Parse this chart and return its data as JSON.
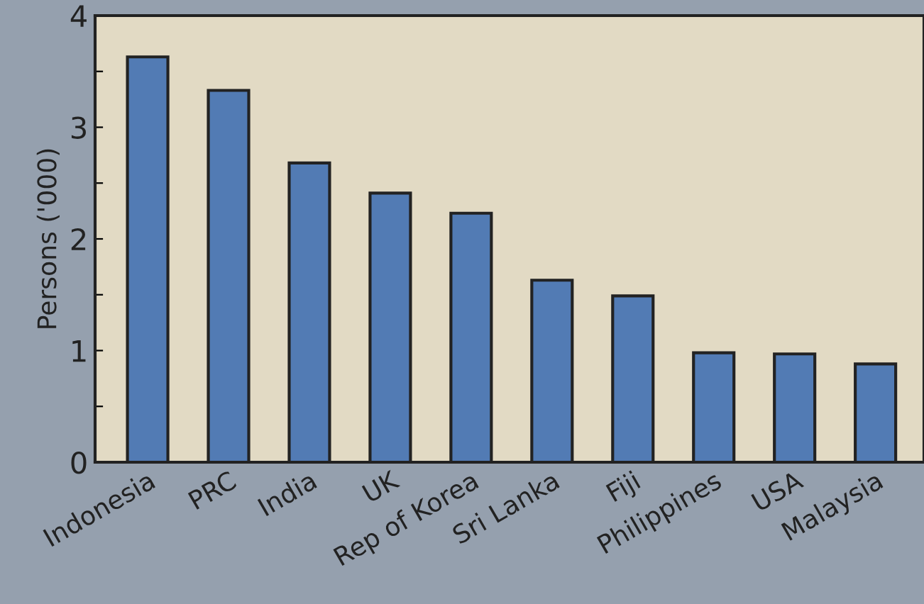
{
  "chart_data": {
    "type": "bar",
    "ylabel": "Persons ('000)",
    "categories": [
      "Indonesia",
      "PRC",
      "India",
      "UK",
      "Rep of Korea",
      "Sri Lanka",
      "Fiji",
      "Philippines",
      "USA",
      "Malaysia"
    ],
    "values": [
      3.63,
      3.33,
      2.68,
      2.41,
      2.23,
      1.63,
      1.49,
      0.98,
      0.97,
      0.88
    ],
    "color": "#527bb4",
    "ylim": [
      0,
      4
    ],
    "yticks": [
      0,
      {
        "value": 0.5,
        "label": null
      },
      1,
      {
        "value": 1.5,
        "label": null
      },
      2,
      {
        "value": 2.5,
        "label": null
      },
      3,
      {
        "value": 3.5,
        "label": null
      },
      4
    ],
    "grid": false
  }
}
